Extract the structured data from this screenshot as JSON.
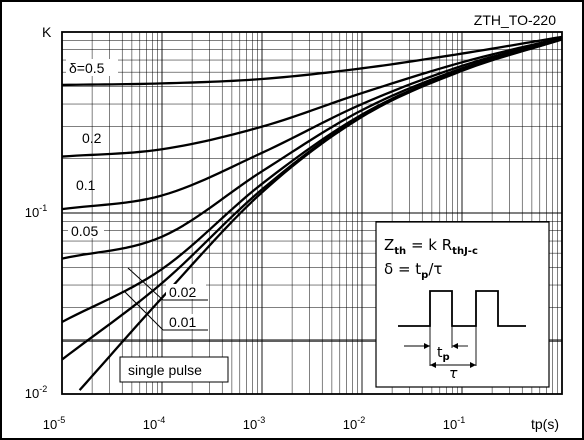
{
  "chart_data": {
    "type": "line",
    "title": "ZTH_TO-220",
    "xlabel": "tp(s)",
    "ylabel": "K",
    "xscale": "log",
    "yscale": "log",
    "xlim": [
      1e-05,
      1.0
    ],
    "ylim": [
      0.01,
      1.0
    ],
    "grid": true,
    "x_ticks": [
      {
        "value": 1e-05,
        "base": "10",
        "exp": "-5"
      },
      {
        "value": 0.0001,
        "base": "10",
        "exp": "-4"
      },
      {
        "value": 0.001,
        "base": "10",
        "exp": "-3"
      },
      {
        "value": 0.01,
        "base": "10",
        "exp": "-2"
      },
      {
        "value": 0.1,
        "base": "10",
        "exp": "-1"
      }
    ],
    "y_ticks": [
      {
        "value": 0.1,
        "base": "10",
        "exp": "-1"
      },
      {
        "value": 0.01,
        "base": "10",
        "exp": "-2"
      }
    ],
    "series": [
      {
        "name": "δ=0.5",
        "x": [
          1e-05,
          0.0001,
          0.001,
          0.01,
          0.1,
          1.0
        ],
        "y": [
          0.51,
          0.52,
          0.55,
          0.63,
          0.76,
          0.94
        ]
      },
      {
        "name": "0.2",
        "x": [
          1e-05,
          0.0001,
          0.001,
          0.01,
          0.1,
          1.0
        ],
        "y": [
          0.205,
          0.225,
          0.3,
          0.46,
          0.68,
          0.93
        ]
      },
      {
        "name": "0.1",
        "x": [
          1e-05,
          0.0001,
          0.001,
          0.01,
          0.1,
          1.0
        ],
        "y": [
          0.105,
          0.125,
          0.215,
          0.4,
          0.65,
          0.92
        ]
      },
      {
        "name": "0.05",
        "x": [
          1e-05,
          0.0001,
          0.001,
          0.01,
          0.1,
          1.0
        ],
        "y": [
          0.056,
          0.074,
          0.17,
          0.37,
          0.63,
          0.92
        ]
      },
      {
        "name": "0.02",
        "x": [
          1e-05,
          0.0001,
          0.001,
          0.01,
          0.1,
          1.0
        ],
        "y": [
          0.025,
          0.049,
          0.145,
          0.35,
          0.62,
          0.915
        ]
      },
      {
        "name": "0.01",
        "x": [
          1e-05,
          0.0001,
          0.001,
          0.01,
          0.1,
          1.0
        ],
        "y": [
          0.0155,
          0.041,
          0.135,
          0.345,
          0.615,
          0.91
        ]
      },
      {
        "name": "single pulse",
        "x": [
          1.5e-05,
          0.0001,
          0.001,
          0.01,
          0.1,
          1.0
        ],
        "y": [
          0.0105,
          0.034,
          0.13,
          0.34,
          0.61,
          0.91
        ]
      }
    ],
    "annotations": {
      "formula_line1": "Zth = k RthJ-c",
      "formula_line2": "δ = tp/τ",
      "zth_main": "Z",
      "zth_sub": "th",
      "zth_rest": " = k R",
      "rth_sub": "thJ-c",
      "delta_text": "δ = t",
      "tp_sub": "p",
      "tau_text": "/τ",
      "pulse_tp_main": "t",
      "pulse_tp_sub": "p",
      "pulse_tau": "τ",
      "single_pulse_label": "single pulse",
      "label_002": "0.02",
      "label_001": "0.01"
    }
  }
}
